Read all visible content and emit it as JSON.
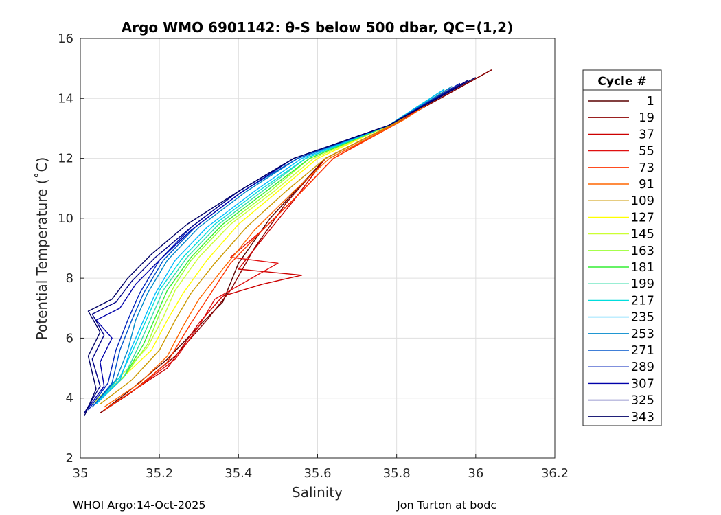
{
  "chart_data": {
    "type": "line",
    "title": "Argo WMO 6901142: θ-S below 500 dbar,  QC=(1,2)",
    "xlabel": "Salinity",
    "ylabel": "Potential Temperature (˚C)",
    "xlim": [
      35,
      36.2
    ],
    "ylim": [
      2,
      16
    ],
    "xticks": [
      35,
      35.2,
      35.4,
      35.6,
      35.8,
      36,
      36.2
    ],
    "xtick_labels": [
      "35",
      "35.2",
      "35.4",
      "35.6",
      "35.8",
      "36",
      "36.2"
    ],
    "yticks": [
      2,
      4,
      6,
      8,
      10,
      12,
      14,
      16
    ],
    "ytick_labels": [
      "2",
      "4",
      "6",
      "8",
      "10",
      "12",
      "14",
      "16"
    ],
    "grid": true,
    "legend": {
      "title": "Cycle #",
      "position": "right",
      "entries": [
        "1",
        "19",
        "37",
        "55",
        "73",
        "91",
        "109",
        "127",
        "145",
        "163",
        "181",
        "199",
        "217",
        "235",
        "253",
        "271",
        "289",
        "307",
        "325",
        "343"
      ]
    },
    "series": [
      {
        "name": "1",
        "color": "#5a0000",
        "points": [
          [
            35.05,
            3.5
          ],
          [
            35.12,
            4.2
          ],
          [
            35.22,
            5.3
          ],
          [
            35.3,
            6.4
          ],
          [
            35.36,
            7.2
          ],
          [
            35.4,
            8.5
          ],
          [
            35.48,
            10.0
          ],
          [
            35.62,
            12.0
          ],
          [
            35.8,
            13.2
          ],
          [
            36.04,
            14.95
          ]
        ]
      },
      {
        "name": "19",
        "color": "#8b0000",
        "points": [
          [
            35.05,
            3.5
          ],
          [
            35.13,
            4.2
          ],
          [
            35.24,
            5.4
          ],
          [
            35.32,
            6.6
          ],
          [
            35.38,
            7.6
          ],
          [
            35.44,
            9.0
          ],
          [
            35.52,
            10.5
          ],
          [
            35.62,
            12.0
          ],
          [
            35.8,
            13.2
          ],
          [
            36.04,
            14.95
          ]
        ]
      },
      {
        "name": "37",
        "color": "#cc0000",
        "points": [
          [
            35.06,
            3.6
          ],
          [
            35.14,
            4.3
          ],
          [
            35.22,
            5.0
          ],
          [
            35.3,
            6.5
          ],
          [
            35.36,
            7.4
          ],
          [
            35.46,
            7.8
          ],
          [
            35.56,
            8.1
          ],
          [
            35.4,
            8.3
          ],
          [
            35.46,
            9.3
          ],
          [
            35.54,
            10.6
          ],
          [
            35.62,
            12.0
          ],
          [
            35.8,
            13.2
          ],
          [
            35.98,
            14.6
          ]
        ]
      },
      {
        "name": "55",
        "color": "#e01010",
        "points": [
          [
            35.06,
            3.6
          ],
          [
            35.14,
            4.3
          ],
          [
            35.24,
            5.3
          ],
          [
            35.3,
            6.4
          ],
          [
            35.34,
            7.3
          ],
          [
            35.42,
            7.9
          ],
          [
            35.5,
            8.5
          ],
          [
            35.38,
            8.7
          ],
          [
            35.46,
            9.6
          ],
          [
            35.56,
            10.9
          ],
          [
            35.64,
            12.0
          ],
          [
            35.8,
            13.2
          ],
          [
            35.98,
            14.6
          ]
        ]
      },
      {
        "name": "73",
        "color": "#ff3300",
        "points": [
          [
            35.06,
            3.6
          ],
          [
            35.15,
            4.4
          ],
          [
            35.22,
            5.2
          ],
          [
            35.28,
            6.5
          ],
          [
            35.32,
            7.3
          ],
          [
            35.38,
            8.5
          ],
          [
            35.46,
            9.6
          ],
          [
            35.56,
            10.9
          ],
          [
            35.64,
            12.0
          ],
          [
            35.82,
            13.3
          ],
          [
            35.96,
            14.5
          ]
        ]
      },
      {
        "name": "91",
        "color": "#ff6600",
        "points": [
          [
            35.06,
            3.7
          ],
          [
            35.15,
            4.5
          ],
          [
            35.22,
            5.4
          ],
          [
            35.26,
            6.4
          ],
          [
            35.3,
            7.3
          ],
          [
            35.36,
            8.3
          ],
          [
            35.44,
            9.6
          ],
          [
            35.54,
            10.9
          ],
          [
            35.63,
            12.0
          ],
          [
            35.82,
            13.3
          ],
          [
            35.96,
            14.5
          ]
        ]
      },
      {
        "name": "109",
        "color": "#cc9900",
        "points": [
          [
            35.05,
            3.8
          ],
          [
            35.13,
            4.6
          ],
          [
            35.2,
            5.6
          ],
          [
            35.24,
            6.6
          ],
          [
            35.28,
            7.5
          ],
          [
            35.34,
            8.5
          ],
          [
            35.42,
            9.7
          ],
          [
            35.52,
            10.9
          ],
          [
            35.62,
            12.0
          ],
          [
            35.8,
            13.2
          ],
          [
            35.94,
            14.4
          ]
        ]
      },
      {
        "name": "127",
        "color": "#ffff00",
        "points": [
          [
            35.03,
            3.8
          ],
          [
            35.1,
            4.6
          ],
          [
            35.18,
            5.6
          ],
          [
            35.22,
            6.6
          ],
          [
            35.26,
            7.5
          ],
          [
            35.32,
            8.6
          ],
          [
            35.4,
            9.8
          ],
          [
            35.5,
            10.9
          ],
          [
            35.6,
            12.0
          ],
          [
            35.78,
            13.1
          ],
          [
            35.92,
            14.3
          ]
        ]
      },
      {
        "name": "145",
        "color": "#ccff33",
        "points": [
          [
            35.03,
            3.8
          ],
          [
            35.1,
            4.7
          ],
          [
            35.17,
            5.7
          ],
          [
            35.21,
            6.7
          ],
          [
            35.24,
            7.6
          ],
          [
            35.3,
            8.7
          ],
          [
            35.38,
            9.8
          ],
          [
            35.49,
            10.9
          ],
          [
            35.59,
            12.0
          ],
          [
            35.78,
            13.1
          ],
          [
            35.92,
            14.3
          ]
        ]
      },
      {
        "name": "163",
        "color": "#99ff33",
        "points": [
          [
            35.04,
            3.8
          ],
          [
            35.11,
            4.7
          ],
          [
            35.17,
            5.8
          ],
          [
            35.2,
            6.8
          ],
          [
            35.24,
            7.8
          ],
          [
            35.28,
            8.6
          ],
          [
            35.36,
            9.7
          ],
          [
            35.48,
            10.9
          ],
          [
            35.58,
            12.0
          ],
          [
            35.78,
            13.1
          ],
          [
            35.92,
            14.3
          ]
        ]
      },
      {
        "name": "181",
        "color": "#33ee33",
        "points": [
          [
            35.04,
            3.8
          ],
          [
            35.11,
            4.7
          ],
          [
            35.16,
            5.8
          ],
          [
            35.19,
            6.7
          ],
          [
            35.22,
            7.6
          ],
          [
            35.28,
            8.7
          ],
          [
            35.36,
            9.8
          ],
          [
            35.47,
            10.9
          ],
          [
            35.58,
            12.0
          ],
          [
            35.78,
            13.1
          ],
          [
            35.92,
            14.3
          ]
        ]
      },
      {
        "name": "199",
        "color": "#33ddaa",
        "points": [
          [
            35.04,
            3.8
          ],
          [
            35.11,
            4.7
          ],
          [
            35.15,
            5.8
          ],
          [
            35.18,
            6.7
          ],
          [
            35.21,
            7.6
          ],
          [
            35.27,
            8.7
          ],
          [
            35.35,
            9.8
          ],
          [
            35.46,
            10.9
          ],
          [
            35.57,
            12.0
          ],
          [
            35.78,
            13.1
          ],
          [
            35.92,
            14.3
          ]
        ]
      },
      {
        "name": "217",
        "color": "#00dddd",
        "points": [
          [
            35.04,
            3.8
          ],
          [
            35.1,
            4.7
          ],
          [
            35.14,
            5.8
          ],
          [
            35.17,
            6.7
          ],
          [
            35.2,
            7.6
          ],
          [
            35.26,
            8.7
          ],
          [
            35.34,
            9.8
          ],
          [
            35.45,
            10.9
          ],
          [
            35.57,
            12.0
          ],
          [
            35.78,
            13.1
          ],
          [
            35.92,
            14.3
          ]
        ]
      },
      {
        "name": "235",
        "color": "#00bbff",
        "points": [
          [
            35.04,
            3.8
          ],
          [
            35.1,
            4.6
          ],
          [
            35.13,
            5.7
          ],
          [
            35.16,
            6.6
          ],
          [
            35.19,
            7.5
          ],
          [
            35.24,
            8.6
          ],
          [
            35.32,
            9.7
          ],
          [
            35.44,
            10.9
          ],
          [
            35.56,
            12.0
          ],
          [
            35.78,
            13.1
          ],
          [
            35.92,
            14.3
          ]
        ]
      },
      {
        "name": "253",
        "color": "#0088cc",
        "points": [
          [
            35.03,
            3.7
          ],
          [
            35.09,
            4.6
          ],
          [
            35.12,
            5.6
          ],
          [
            35.14,
            6.6
          ],
          [
            35.17,
            7.5
          ],
          [
            35.22,
            8.6
          ],
          [
            35.3,
            9.7
          ],
          [
            35.42,
            10.9
          ],
          [
            35.55,
            12.0
          ],
          [
            35.78,
            13.1
          ],
          [
            35.94,
            14.4
          ]
        ]
      },
      {
        "name": "271",
        "color": "#0055cc",
        "points": [
          [
            35.03,
            3.7
          ],
          [
            35.08,
            4.5
          ],
          [
            35.1,
            5.6
          ],
          [
            35.13,
            6.6
          ],
          [
            35.16,
            7.5
          ],
          [
            35.21,
            8.6
          ],
          [
            35.29,
            9.7
          ],
          [
            35.41,
            10.9
          ],
          [
            35.55,
            12.0
          ],
          [
            35.78,
            13.1
          ],
          [
            35.96,
            14.5
          ]
        ]
      },
      {
        "name": "289",
        "color": "#0022bb",
        "points": [
          [
            35.02,
            3.6
          ],
          [
            35.07,
            4.5
          ],
          [
            35.09,
            5.6
          ],
          [
            35.12,
            6.6
          ],
          [
            35.15,
            7.5
          ],
          [
            35.2,
            8.6
          ],
          [
            35.28,
            9.7
          ],
          [
            35.4,
            10.9
          ],
          [
            35.54,
            12.0
          ],
          [
            35.78,
            13.1
          ],
          [
            35.96,
            14.5
          ]
        ]
      },
      {
        "name": "307",
        "color": "#0000aa",
        "points": [
          [
            35.01,
            3.5
          ],
          [
            35.06,
            4.4
          ],
          [
            35.05,
            5.2
          ],
          [
            35.08,
            6.0
          ],
          [
            35.04,
            6.6
          ],
          [
            35.1,
            7.0
          ],
          [
            35.14,
            7.8
          ],
          [
            35.2,
            8.6
          ],
          [
            35.28,
            9.6
          ],
          [
            35.4,
            10.8
          ],
          [
            35.54,
            12.0
          ],
          [
            35.78,
            13.1
          ],
          [
            35.98,
            14.6
          ]
        ]
      },
      {
        "name": "325",
        "color": "#000088",
        "points": [
          [
            35.01,
            3.5
          ],
          [
            35.05,
            4.4
          ],
          [
            35.03,
            5.3
          ],
          [
            35.06,
            6.1
          ],
          [
            35.03,
            6.8
          ],
          [
            35.09,
            7.2
          ],
          [
            35.13,
            7.9
          ],
          [
            35.19,
            8.7
          ],
          [
            35.28,
            9.7
          ],
          [
            35.4,
            10.9
          ],
          [
            35.54,
            12.0
          ],
          [
            35.78,
            13.1
          ],
          [
            35.98,
            14.6
          ]
        ]
      },
      {
        "name": "343",
        "color": "#000066",
        "points": [
          [
            35.01,
            3.4
          ],
          [
            35.04,
            4.3
          ],
          [
            35.02,
            5.4
          ],
          [
            35.05,
            6.2
          ],
          [
            35.02,
            6.9
          ],
          [
            35.08,
            7.3
          ],
          [
            35.12,
            8.0
          ],
          [
            35.18,
            8.8
          ],
          [
            35.27,
            9.8
          ],
          [
            35.4,
            10.9
          ],
          [
            35.54,
            12.0
          ],
          [
            35.78,
            13.1
          ],
          [
            36.0,
            14.7
          ]
        ]
      }
    ]
  },
  "footer": {
    "left": "WHOI Argo:14-Oct-2025",
    "right": "Jon Turton at bodc"
  }
}
